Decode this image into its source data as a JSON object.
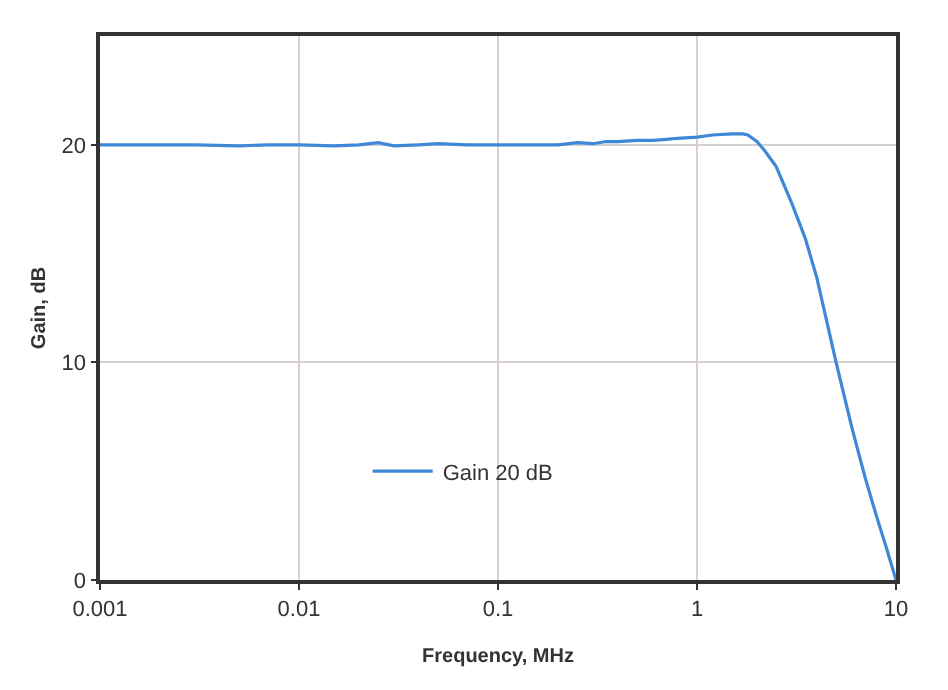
{
  "chart_data": {
    "type": "line",
    "xlabel": "Frequency, MHz",
    "ylabel": "Gain, dB",
    "log": "x",
    "xlim": [
      0.001,
      10
    ],
    "xticks": [
      0.001,
      0.01,
      0.1,
      1,
      10
    ],
    "ylim": [
      0,
      25
    ],
    "yticks": [
      0,
      10,
      20
    ],
    "grid": true,
    "legend": "bottom left",
    "marker": "none",
    "line_style": "solid",
    "series": [
      {
        "name": "Gain 20 dB",
        "color": "#3f88d8",
        "x": [
          0.001,
          0.002,
          0.003,
          0.005,
          0.007,
          0.01,
          0.015,
          0.02,
          0.025,
          0.03,
          0.04,
          0.05,
          0.07,
          0.1,
          0.15,
          0.2,
          0.25,
          0.3,
          0.35,
          0.4,
          0.5,
          0.6,
          0.7,
          0.8,
          1,
          1.2,
          1.5,
          1.7,
          1.8,
          2.0,
          2.2,
          2.5,
          3,
          3.5,
          4,
          5,
          6,
          7,
          8,
          9,
          10
        ],
        "values": [
          20.0,
          20.0,
          20.0,
          19.95,
          20.0,
          20.0,
          19.95,
          20.0,
          20.1,
          19.95,
          20.0,
          20.05,
          20.0,
          20.0,
          20.0,
          20.0,
          20.1,
          20.05,
          20.15,
          20.15,
          20.2,
          20.2,
          20.25,
          20.3,
          20.35,
          20.45,
          20.5,
          20.5,
          20.45,
          20.15,
          19.7,
          19.0,
          17.3,
          15.7,
          13.9,
          10.0,
          7.0,
          4.7,
          2.9,
          1.4,
          0
        ]
      }
    ]
  }
}
